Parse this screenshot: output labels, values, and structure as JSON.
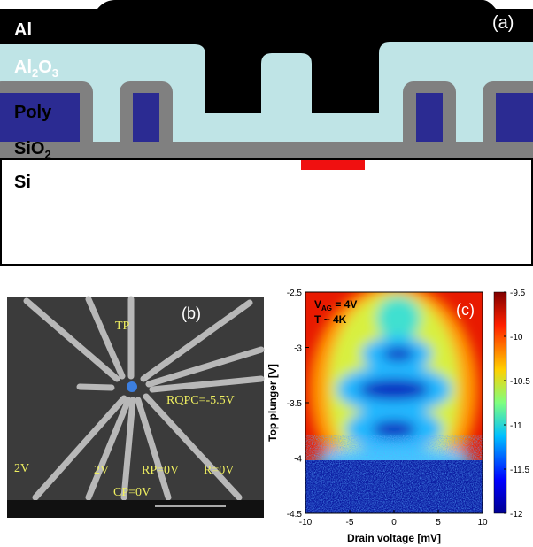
{
  "panel_a": {
    "label": "(a)",
    "al": "Al",
    "al2o3": {
      "a": "Al",
      "b": "2",
      "c": "O",
      "d": "3"
    },
    "poly": "Poly",
    "sio2": {
      "a": "SiO",
      "b": "2"
    },
    "si": "Si"
  },
  "panel_b": {
    "label": "(b)",
    "annotations": [
      "TP",
      "RQPC=-5.5V",
      "2V",
      "2V",
      "RP=0V",
      "R=0V",
      "CP=0V"
    ]
  },
  "chart_data": {
    "type": "heatmap",
    "label": "(c)",
    "gate_voltage": {
      "symbol": "V",
      "subscript": "AG",
      "text": " = 4V"
    },
    "temperature": "T ~ 4K",
    "xlabel": "Drain voltage [mV]",
    "ylabel": "Top plunger [V]",
    "xlim": [
      -10,
      10
    ],
    "xticks": [
      -10,
      -5,
      0,
      5,
      10
    ],
    "ylim": [
      -4.5,
      -2.5
    ],
    "yticks": [
      -4.5,
      -4,
      -3.5,
      -3,
      -2.5
    ],
    "colorbar": {
      "lim": [
        -12,
        -9.5
      ],
      "ticks": [
        -12,
        -11.5,
        -11,
        -10.5,
        -10,
        -9.5
      ]
    }
  }
}
